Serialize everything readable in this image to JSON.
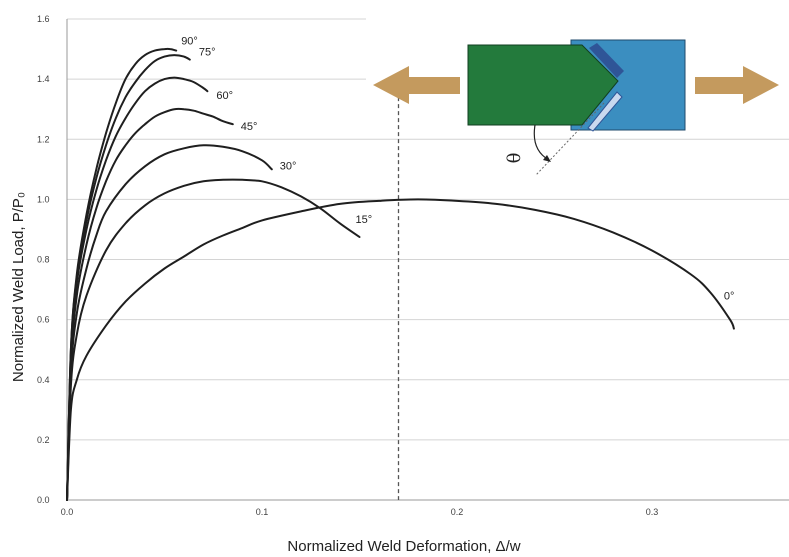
{
  "chart_data": {
    "type": "line",
    "xlabel": "Normalized Weld Deformation, Δ/w",
    "ylabel": "Normalized Weld Load, P/P₀",
    "xlim": [
      0,
      0.37
    ],
    "ylim": [
      0,
      1.6
    ],
    "x_ticks": [
      "0.0",
      "0.1",
      "0.2",
      "0.3"
    ],
    "y_ticks": [
      "0.0",
      "0.2",
      "0.4",
      "0.6",
      "0.8",
      "1.0",
      "1.2",
      "1.4",
      "1.6"
    ],
    "grid": "horizontal",
    "reference_line_x": 0.17,
    "diagram_angle_symbol": "θ",
    "series": [
      {
        "name": "90°",
        "points": [
          [
            0,
            0
          ],
          [
            0.002,
            0.5
          ],
          [
            0.005,
            0.75
          ],
          [
            0.01,
            0.95
          ],
          [
            0.015,
            1.1
          ],
          [
            0.02,
            1.22
          ],
          [
            0.025,
            1.32
          ],
          [
            0.03,
            1.4
          ],
          [
            0.035,
            1.45
          ],
          [
            0.04,
            1.48
          ],
          [
            0.045,
            1.495
          ],
          [
            0.05,
            1.5
          ],
          [
            0.053,
            1.5
          ],
          [
            0.056,
            1.495
          ]
        ]
      },
      {
        "name": "75°",
        "points": [
          [
            0,
            0
          ],
          [
            0.002,
            0.5
          ],
          [
            0.005,
            0.74
          ],
          [
            0.01,
            0.93
          ],
          [
            0.015,
            1.07
          ],
          [
            0.02,
            1.18
          ],
          [
            0.025,
            1.27
          ],
          [
            0.03,
            1.34
          ],
          [
            0.035,
            1.39
          ],
          [
            0.04,
            1.43
          ],
          [
            0.045,
            1.46
          ],
          [
            0.05,
            1.475
          ],
          [
            0.055,
            1.48
          ],
          [
            0.06,
            1.475
          ],
          [
            0.063,
            1.465
          ]
        ]
      },
      {
        "name": "60°",
        "points": [
          [
            0,
            0
          ],
          [
            0.002,
            0.48
          ],
          [
            0.005,
            0.72
          ],
          [
            0.01,
            0.9
          ],
          [
            0.015,
            1.03
          ],
          [
            0.02,
            1.13
          ],
          [
            0.025,
            1.21
          ],
          [
            0.03,
            1.27
          ],
          [
            0.035,
            1.32
          ],
          [
            0.04,
            1.36
          ],
          [
            0.045,
            1.385
          ],
          [
            0.05,
            1.4
          ],
          [
            0.055,
            1.405
          ],
          [
            0.06,
            1.4
          ],
          [
            0.065,
            1.39
          ],
          [
            0.07,
            1.37
          ],
          [
            0.072,
            1.36
          ]
        ]
      },
      {
        "name": "45°",
        "points": [
          [
            0,
            0
          ],
          [
            0.002,
            0.45
          ],
          [
            0.005,
            0.68
          ],
          [
            0.01,
            0.85
          ],
          [
            0.015,
            0.97
          ],
          [
            0.02,
            1.06
          ],
          [
            0.025,
            1.13
          ],
          [
            0.03,
            1.18
          ],
          [
            0.035,
            1.22
          ],
          [
            0.04,
            1.25
          ],
          [
            0.045,
            1.275
          ],
          [
            0.05,
            1.29
          ],
          [
            0.055,
            1.3
          ],
          [
            0.06,
            1.3
          ],
          [
            0.065,
            1.295
          ],
          [
            0.07,
            1.285
          ],
          [
            0.075,
            1.275
          ],
          [
            0.08,
            1.26
          ],
          [
            0.085,
            1.25
          ]
        ]
      },
      {
        "name": "30°",
        "points": [
          [
            0,
            0
          ],
          [
            0.002,
            0.42
          ],
          [
            0.005,
            0.62
          ],
          [
            0.01,
            0.77
          ],
          [
            0.015,
            0.88
          ],
          [
            0.02,
            0.96
          ],
          [
            0.03,
            1.05
          ],
          [
            0.04,
            1.11
          ],
          [
            0.05,
            1.15
          ],
          [
            0.06,
            1.17
          ],
          [
            0.07,
            1.18
          ],
          [
            0.08,
            1.175
          ],
          [
            0.09,
            1.16
          ],
          [
            0.1,
            1.13
          ],
          [
            0.105,
            1.1
          ]
        ]
      },
      {
        "name": "15°",
        "points": [
          [
            0,
            0
          ],
          [
            0.002,
            0.38
          ],
          [
            0.005,
            0.55
          ],
          [
            0.01,
            0.68
          ],
          [
            0.02,
            0.83
          ],
          [
            0.03,
            0.92
          ],
          [
            0.04,
            0.98
          ],
          [
            0.05,
            1.02
          ],
          [
            0.06,
            1.045
          ],
          [
            0.07,
            1.06
          ],
          [
            0.08,
            1.065
          ],
          [
            0.09,
            1.065
          ],
          [
            0.1,
            1.06
          ],
          [
            0.11,
            1.04
          ],
          [
            0.12,
            1.01
          ],
          [
            0.13,
            0.97
          ],
          [
            0.14,
            0.92
          ],
          [
            0.15,
            0.875
          ]
        ]
      },
      {
        "name": "0°",
        "points": [
          [
            0,
            0
          ],
          [
            0.002,
            0.3
          ],
          [
            0.005,
            0.4
          ],
          [
            0.01,
            0.48
          ],
          [
            0.02,
            0.58
          ],
          [
            0.03,
            0.66
          ],
          [
            0.04,
            0.72
          ],
          [
            0.05,
            0.77
          ],
          [
            0.06,
            0.81
          ],
          [
            0.07,
            0.85
          ],
          [
            0.08,
            0.88
          ],
          [
            0.09,
            0.905
          ],
          [
            0.1,
            0.93
          ],
          [
            0.12,
            0.96
          ],
          [
            0.14,
            0.985
          ],
          [
            0.16,
            0.995
          ],
          [
            0.18,
            1.0
          ],
          [
            0.2,
            0.995
          ],
          [
            0.22,
            0.985
          ],
          [
            0.24,
            0.965
          ],
          [
            0.26,
            0.935
          ],
          [
            0.28,
            0.89
          ],
          [
            0.3,
            0.83
          ],
          [
            0.32,
            0.75
          ],
          [
            0.33,
            0.69
          ],
          [
            0.34,
            0.6
          ],
          [
            0.342,
            0.57
          ]
        ]
      }
    ]
  },
  "colors": {
    "plate_left": "#237a3c",
    "plate_right": "#3b8ec0",
    "weld_dark": "#2f5597",
    "weld_light": "#c9d9ef",
    "arrow": "#c49a5e",
    "curve": "#1f1f1f"
  }
}
